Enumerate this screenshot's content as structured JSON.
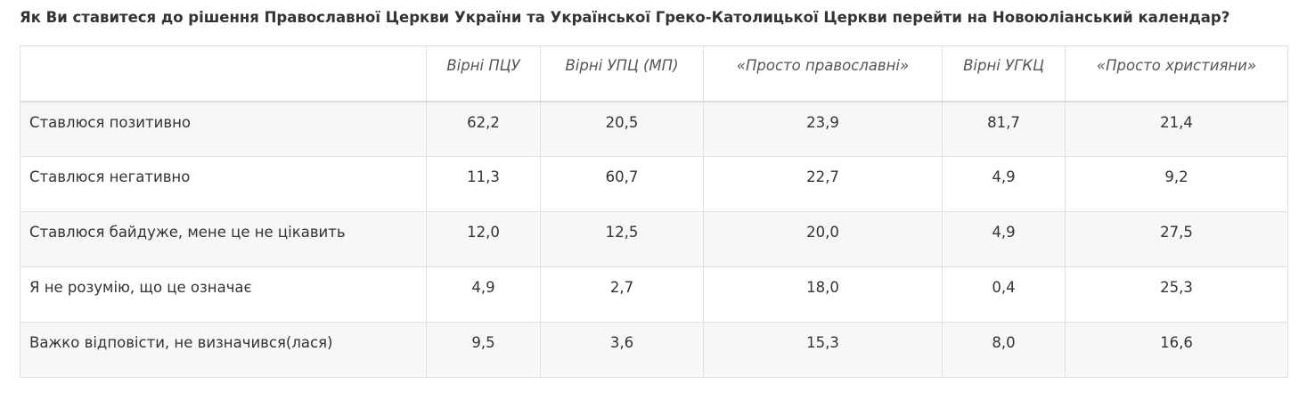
{
  "title": "Як Ви ставитеся до рішення Православної Церкви України та Української Греко-Католицької Церкви перейти на Новоюліанський календар?",
  "table": {
    "header": [
      "Вірні ПЦУ",
      "Вірні УПЦ (МП)",
      "«Просто православні»",
      "Вірні УГКЦ",
      "«Просто християни»"
    ],
    "rows": [
      [
        "Ставлюся позитивно",
        "62,2",
        "20,5",
        "23,9",
        "81,7",
        "21,4"
      ],
      [
        "Ставлюся негативно",
        "11,3",
        "60,7",
        "22,7",
        "4,9",
        "9,2"
      ],
      [
        "Ставлюся байдуже, мене це не цікавить",
        "12,0",
        "12,5",
        "20,0",
        "4,9",
        "27,5"
      ],
      [
        "Я не розумію, що це означає",
        "4,9",
        "2,7",
        "18,0",
        "0,4",
        "25,3"
      ],
      [
        "Важко відповісти, не визначився(лася)",
        "9,5",
        "3,6",
        "15,3",
        "8,0",
        "16,6"
      ]
    ]
  }
}
